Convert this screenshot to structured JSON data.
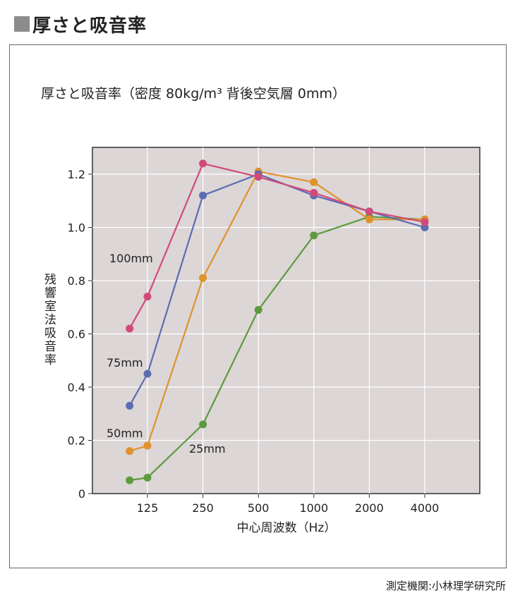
{
  "heading": "厚さと吸音率",
  "credit": "測定機関:小林理学研究所",
  "chart_data": {
    "type": "line",
    "title": "厚さと吸音率（密度 80kg/m³  背後空気層 0mm）",
    "xlabel": "中心周波数（Hz）",
    "ylabel": "残響室法吸音率",
    "x_tick_labels": [
      "125",
      "250",
      "500",
      "1000",
      "2000",
      "4000"
    ],
    "y_tick_labels": [
      "0",
      "0.2",
      "0.4",
      "0.6",
      "0.8",
      "1.0",
      "1.2"
    ],
    "ylim": [
      0,
      1.3
    ],
    "grid": true,
    "background": "#dcd6d6",
    "series": [
      {
        "name": "100mm",
        "color": "#d24a7a",
        "points": [
          [
            100,
            0.62
          ],
          [
            125,
            0.74
          ],
          [
            250,
            1.24
          ],
          [
            500,
            1.19
          ],
          [
            1000,
            1.13
          ],
          [
            2000,
            1.06
          ],
          [
            4000,
            1.02
          ]
        ]
      },
      {
        "name": "75mm",
        "color": "#5c6cb0",
        "points": [
          [
            100,
            0.33
          ],
          [
            125,
            0.45
          ],
          [
            250,
            1.12
          ],
          [
            500,
            1.2
          ],
          [
            1000,
            1.12
          ],
          [
            2000,
            1.06
          ],
          [
            4000,
            1.0
          ]
        ]
      },
      {
        "name": "50mm",
        "color": "#e0922c",
        "points": [
          [
            100,
            0.16
          ],
          [
            125,
            0.18
          ],
          [
            250,
            0.81
          ],
          [
            500,
            1.21
          ],
          [
            1000,
            1.17
          ],
          [
            2000,
            1.03
          ],
          [
            4000,
            1.03
          ]
        ]
      },
      {
        "name": "25mm",
        "color": "#5e9a3e",
        "points": [
          [
            100,
            0.05
          ],
          [
            125,
            0.06
          ],
          [
            250,
            0.26
          ],
          [
            500,
            0.69
          ],
          [
            1000,
            0.97
          ],
          [
            2000,
            1.04
          ],
          [
            4000,
            1.03
          ]
        ]
      }
    ]
  }
}
